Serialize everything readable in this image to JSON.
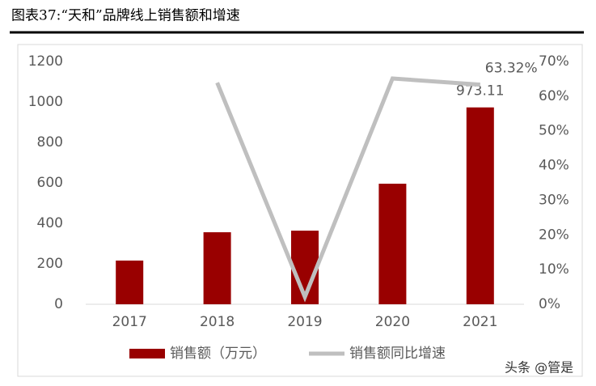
{
  "chart_data": {
    "type": "bar-line",
    "title": "图表37:“天和”品牌线上销售额和增速",
    "categories": [
      "2017",
      "2018",
      "2019",
      "2020",
      "2021"
    ],
    "series": [
      {
        "name": "销售额（万元）",
        "type": "bar",
        "color": "#990000",
        "values": [
          216,
          356,
          364,
          596,
          973.11
        ],
        "value_labels": [
          null,
          null,
          null,
          null,
          "973.11"
        ]
      },
      {
        "name": "销售额同比增速",
        "type": "line",
        "axis": "y2",
        "color": "#bfbfbf",
        "values": [
          null,
          63.9,
          2.1,
          65.1,
          63.32
        ],
        "value_labels": [
          null,
          null,
          null,
          null,
          "63.32%"
        ]
      }
    ],
    "ylim": [
      0,
      1200
    ],
    "yticks": [
      0,
      200,
      400,
      600,
      800,
      1000,
      1200
    ],
    "y2lim": [
      0,
      70
    ],
    "y2ticks": [
      {
        "value": 0,
        "label": "0%"
      },
      {
        "value": 10,
        "label": "10%"
      },
      {
        "value": 20,
        "label": "20%"
      },
      {
        "value": 30,
        "label": "30%"
      },
      {
        "value": 40,
        "label": "40%"
      },
      {
        "value": 50,
        "label": "50%"
      },
      {
        "value": 60,
        "label": "60%"
      },
      {
        "value": 70,
        "label": "70%"
      }
    ],
    "grid": false,
    "legend": "bottom",
    "watermark": "头条 @管是"
  }
}
